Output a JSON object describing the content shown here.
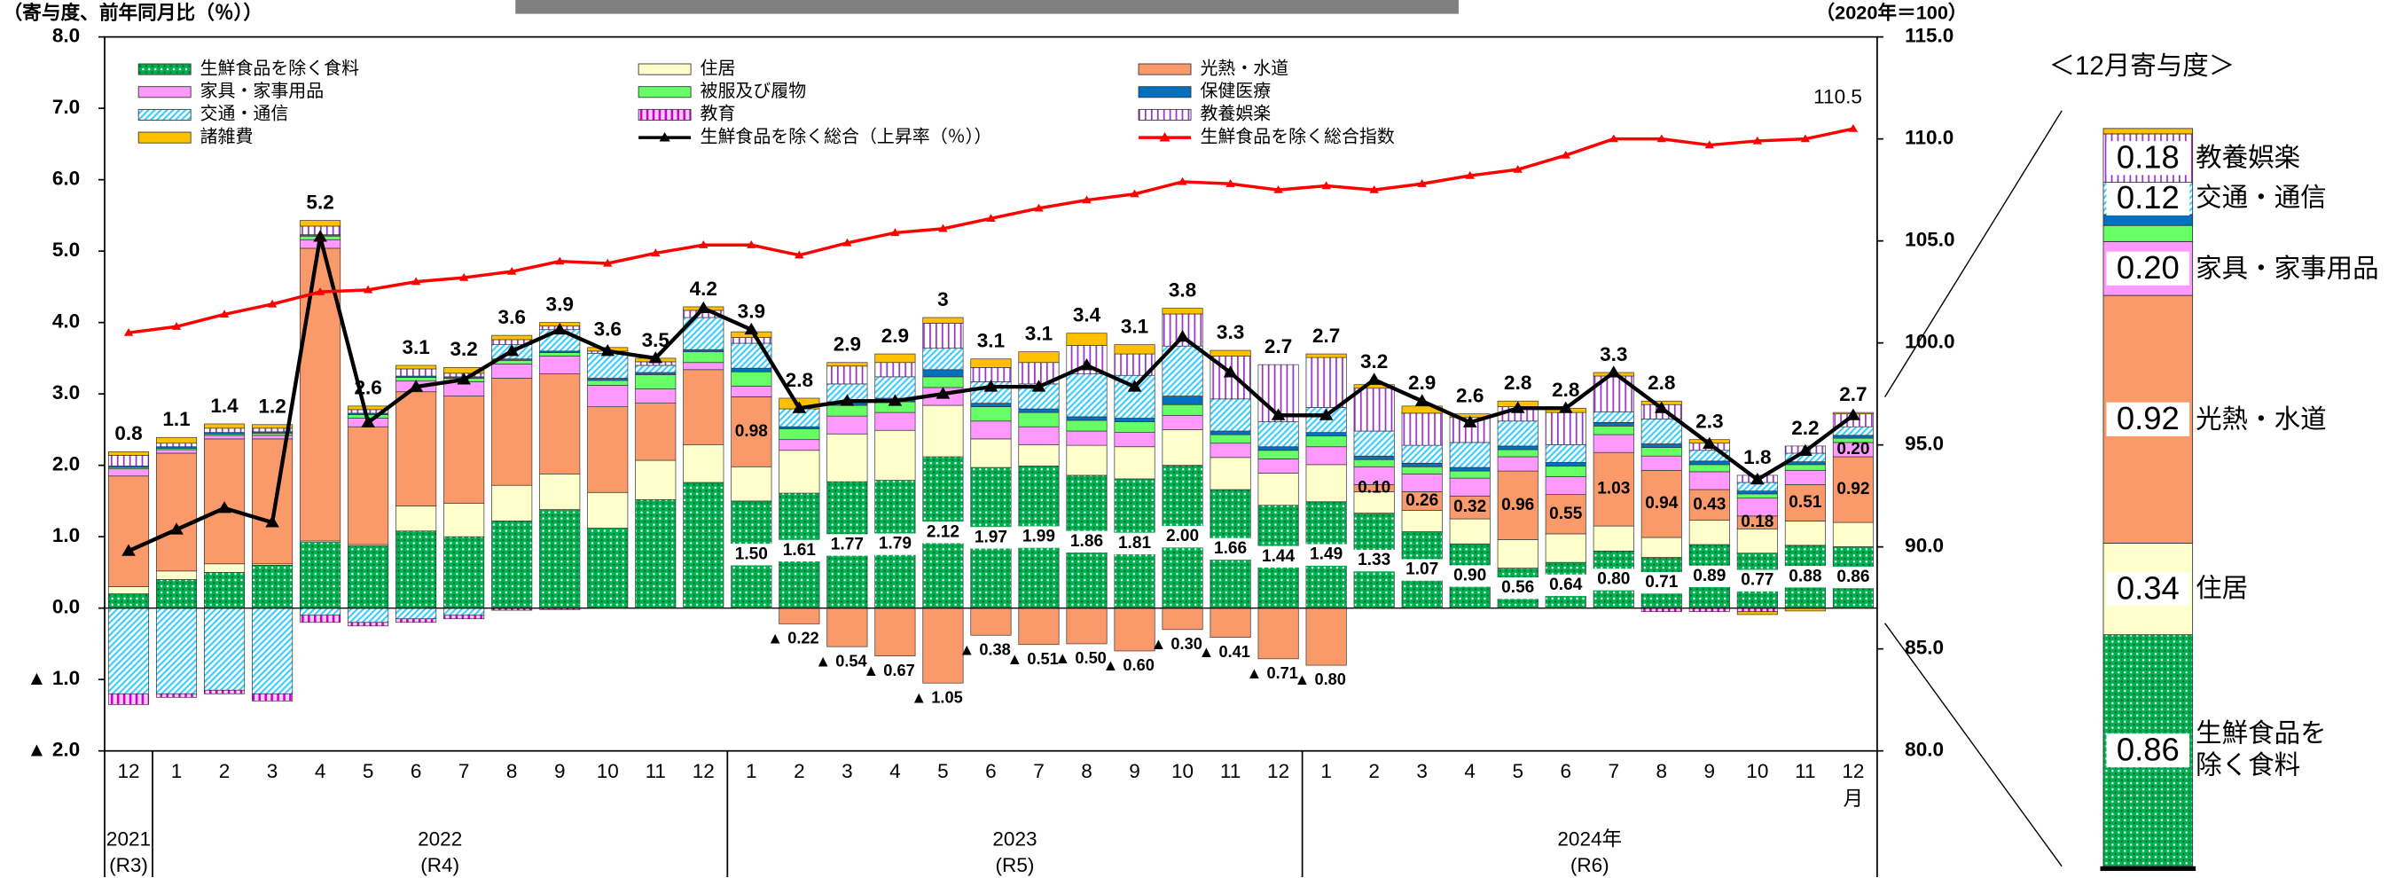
{
  "axis_label_left": "（寄与度、前年同月比（％））",
  "axis_label_right": "（2020年＝100）",
  "panel_title": "＜12月寄与度＞",
  "chart_data": {
    "type": "bar",
    "stacked": true,
    "categories": [
      "12",
      "1",
      "2",
      "3",
      "4",
      "5",
      "6",
      "7",
      "8",
      "9",
      "10",
      "11",
      "12",
      "1",
      "2",
      "3",
      "4",
      "5",
      "6",
      "7",
      "8",
      "9",
      "10",
      "11",
      "12",
      "1",
      "2",
      "3",
      "4",
      "5",
      "6",
      "7",
      "8",
      "9",
      "10",
      "11",
      "12"
    ],
    "month_unit": "月",
    "years": [
      {
        "year": "2021",
        "era": "(R3)"
      },
      {
        "year": "2022",
        "era": "(R4)"
      },
      {
        "year": "2023",
        "era": "(R5)"
      },
      {
        "year": "2024年",
        "era": "(R6)"
      }
    ],
    "ylim": [
      -2,
      8
    ],
    "yticks": [
      {
        "value": 8,
        "label": "8.0"
      },
      {
        "value": 7,
        "label": "7.0"
      },
      {
        "value": 6,
        "label": "6.0"
      },
      {
        "value": 5,
        "label": "5.0"
      },
      {
        "value": 4,
        "label": "4.0"
      },
      {
        "value": 3,
        "label": "3.0"
      },
      {
        "value": 2,
        "label": "2.0"
      },
      {
        "value": 1,
        "label": "1.0"
      },
      {
        "value": 0,
        "label": "0.0"
      },
      {
        "value": -1,
        "label": "▲ 1.0"
      },
      {
        "value": -2,
        "label": "▲ 2.0"
      }
    ],
    "y2lim": [
      80,
      115
    ],
    "y2ticks": [
      {
        "value": 115,
        "label": "115.0"
      },
      {
        "value": 110,
        "label": "110.0"
      },
      {
        "value": 105,
        "label": "105.0"
      },
      {
        "value": 100,
        "label": "100.0"
      },
      {
        "value": 95,
        "label": "95.0"
      },
      {
        "value": 90,
        "label": "90.0"
      },
      {
        "value": 85,
        "label": "85.0"
      },
      {
        "value": 80,
        "label": "80.0"
      }
    ],
    "grid": false,
    "series": [
      {
        "name": "生鮮食品を除く食料",
        "type": "bar",
        "color": "#00b050",
        "pattern": "dots",
        "values": [
          0.2,
          0.4,
          0.5,
          0.6,
          0.92,
          0.87,
          1.08,
          1.0,
          1.22,
          1.38,
          1.12,
          1.52,
          1.76,
          1.5,
          1.61,
          1.77,
          1.79,
          2.12,
          1.97,
          1.99,
          1.86,
          1.81,
          2.0,
          1.66,
          1.44,
          1.49,
          1.33,
          1.07,
          0.9,
          0.56,
          0.64,
          0.8,
          0.71,
          0.89,
          0.77,
          0.88,
          0.86
        ],
        "value_labels": [
          null,
          null,
          null,
          null,
          null,
          null,
          null,
          null,
          null,
          null,
          null,
          null,
          null,
          "1.50",
          "1.61",
          "1.77",
          "1.79",
          "2.12",
          "1.97",
          "1.99",
          "1.86",
          "1.81",
          "2.00",
          "1.66",
          "1.44",
          "1.49",
          "1.33",
          "1.07",
          "0.90",
          "0.56",
          "0.64",
          "0.80",
          "0.71",
          "0.89",
          "0.77",
          "0.88",
          "0.86"
        ]
      },
      {
        "name": "住居",
        "type": "bar",
        "color": "#ffffcc",
        "values": [
          0.1,
          0.12,
          0.12,
          0.02,
          0.02,
          0.02,
          0.35,
          0.47,
          0.5,
          0.5,
          0.5,
          0.55,
          0.53,
          0.48,
          0.6,
          0.67,
          0.7,
          0.72,
          0.4,
          0.3,
          0.42,
          0.45,
          0.5,
          0.45,
          0.45,
          0.52,
          0.3,
          0.3,
          0.35,
          0.4,
          0.4,
          0.35,
          0.28,
          0.34,
          0.34,
          0.34,
          0.34
        ]
      },
      {
        "name": "光熱・水道",
        "type": "bar",
        "color": "#fa9a6a",
        "values": [
          1.55,
          1.65,
          1.75,
          1.75,
          4.1,
          1.65,
          1.6,
          1.5,
          1.5,
          1.4,
          1.2,
          0.8,
          1.05,
          0.98,
          -0.22,
          -0.54,
          -0.67,
          -1.05,
          -0.38,
          -0.51,
          -0.5,
          -0.6,
          -0.3,
          -0.41,
          -0.71,
          -0.8,
          0.1,
          0.26,
          0.32,
          0.96,
          0.55,
          1.03,
          0.94,
          0.43,
          0.18,
          0.51,
          0.92
        ],
        "value_labels": [
          null,
          null,
          null,
          null,
          null,
          null,
          null,
          null,
          null,
          null,
          null,
          null,
          null,
          "0.98",
          "▲ 0.22",
          "▲ 0.54",
          "▲ 0.67",
          "▲ 1.05",
          "▲ 0.38",
          "▲ 0.51",
          "▲ 0.50",
          "▲ 0.60",
          "▲ 0.30",
          "▲ 0.41",
          "▲ 0.71",
          "▲ 0.80",
          "0.10",
          "0.26",
          "0.32",
          "0.96",
          "0.55",
          "1.03",
          "0.94",
          "0.43",
          "0.18",
          "0.51",
          "0.92"
        ]
      },
      {
        "name": "家具・家事用品",
        "type": "bar",
        "color": "#ff99ff",
        "values": [
          0.1,
          0.05,
          0.05,
          0.05,
          0.12,
          0.12,
          0.15,
          0.2,
          0.2,
          0.25,
          0.3,
          0.2,
          0.1,
          0.15,
          0.15,
          0.25,
          0.25,
          0.25,
          0.25,
          0.25,
          0.2,
          0.2,
          0.2,
          0.2,
          0.2,
          0.25,
          0.25,
          0.25,
          0.25,
          0.2,
          0.25,
          0.25,
          0.2,
          0.25,
          0.25,
          0.2,
          0.2
        ],
        "value_labels": [
          null,
          null,
          null,
          null,
          null,
          null,
          null,
          null,
          null,
          null,
          null,
          null,
          null,
          null,
          null,
          null,
          null,
          null,
          null,
          null,
          null,
          null,
          null,
          null,
          null,
          null,
          null,
          null,
          null,
          null,
          null,
          null,
          null,
          null,
          null,
          null,
          "0.20"
        ]
      },
      {
        "name": "被服及び履物",
        "type": "bar",
        "color": "#66ff66",
        "values": [
          0.02,
          0.02,
          0.02,
          0.03,
          0.05,
          0.05,
          0.05,
          0.05,
          0.05,
          0.05,
          0.07,
          0.2,
          0.15,
          0.2,
          0.15,
          0.15,
          0.15,
          0.15,
          0.2,
          0.2,
          0.15,
          0.15,
          0.15,
          0.12,
          0.12,
          0.15,
          0.1,
          0.1,
          0.1,
          0.1,
          0.15,
          0.12,
          0.12,
          0.1,
          0.06,
          0.08,
          0.06
        ]
      },
      {
        "name": "保健医療",
        "type": "bar",
        "color": "#0070c0",
        "values": [
          0.02,
          0.02,
          0.02,
          0.02,
          0.02,
          0.02,
          0.02,
          0.02,
          0.02,
          0.02,
          0.03,
          0.03,
          0.03,
          0.05,
          0.03,
          0.05,
          0.05,
          0.1,
          0.05,
          0.05,
          0.05,
          0.05,
          0.12,
          0.05,
          0.05,
          0.05,
          0.05,
          0.05,
          0.05,
          0.05,
          0.05,
          0.05,
          0.05,
          0.05,
          0.04,
          0.04,
          0.04
        ]
      },
      {
        "name": "交通・通信",
        "type": "bar",
        "color": "#33ccff",
        "pattern": "hatch",
        "values": [
          -1.2,
          -1.2,
          -1.15,
          -1.2,
          -0.1,
          -0.2,
          -0.15,
          -0.1,
          0.2,
          0.3,
          0.35,
          0.1,
          0.45,
          0.35,
          0.25,
          0.25,
          0.3,
          0.3,
          0.3,
          0.35,
          0.6,
          0.6,
          0.7,
          0.45,
          0.35,
          0.35,
          0.35,
          0.25,
          0.35,
          0.35,
          0.25,
          0.15,
          0.35,
          0.15,
          0.12,
          0.12,
          0.12
        ]
      },
      {
        "name": "教育",
        "type": "bar",
        "color": "#cc00cc",
        "pattern": "stripes-dense",
        "values": [
          -0.15,
          -0.05,
          -0.05,
          -0.1,
          -0.1,
          -0.05,
          -0.05,
          -0.05,
          -0.03,
          -0.02,
          0,
          0,
          0,
          0,
          0,
          0,
          0,
          0,
          0,
          0,
          0,
          0,
          0,
          0,
          0,
          0,
          0,
          0,
          0,
          0,
          0,
          0,
          -0.05,
          -0.05,
          -0.05,
          0,
          0
        ]
      },
      {
        "name": "教養娯楽",
        "type": "bar",
        "color": "#9933cc",
        "pattern": "stripes",
        "values": [
          0.15,
          0.05,
          0.06,
          0.05,
          0.12,
          0.05,
          0.1,
          0.05,
          0.07,
          0.05,
          0.03,
          0.05,
          0.1,
          0.08,
          0.0,
          0.25,
          0.2,
          0.35,
          0.2,
          0.3,
          0.4,
          0.3,
          0.45,
          0.6,
          0.8,
          0.7,
          0.6,
          0.45,
          0.35,
          0.2,
          0.45,
          0.5,
          0.2,
          0.1,
          0.1,
          0.1,
          0.18
        ]
      },
      {
        "name": "諸雑費",
        "type": "bar",
        "color": "#ffc000",
        "values": [
          0.05,
          0.08,
          0.06,
          0.05,
          0.08,
          0.05,
          0.05,
          0.08,
          0.06,
          0.05,
          0.05,
          0.05,
          0.05,
          0.08,
          0.15,
          0.05,
          0.12,
          0.08,
          0.12,
          0.15,
          0.17,
          0.13,
          0.08,
          0.08,
          0.0,
          0.05,
          0.05,
          0.1,
          0.05,
          0.08,
          0.06,
          0.05,
          0.05,
          0.05,
          -0.04,
          -0.04,
          0.02
        ]
      },
      {
        "name": "生鮮食品を除く総合（上昇率（％））",
        "type": "line",
        "color": "#000000",
        "values": [
          0.8,
          1.1,
          1.4,
          1.2,
          5.2,
          2.6,
          3.1,
          3.2,
          3.6,
          3.9,
          3.6,
          3.5,
          4.2,
          3.9,
          2.8,
          2.9,
          2.9,
          3.0,
          3.1,
          3.1,
          3.4,
          3.1,
          3.8,
          3.3,
          2.7,
          2.7,
          3.2,
          2.9,
          2.6,
          2.8,
          2.8,
          3.3,
          2.8,
          2.3,
          1.8,
          2.2,
          2.7
        ]
      },
      {
        "name": "生鮮食品を除く総合指数",
        "type": "line",
        "axis": "y2",
        "color": "#ff0000",
        "values": [
          100.5,
          100.8,
          101.4,
          101.9,
          102.5,
          102.6,
          103.0,
          103.2,
          103.5,
          104.0,
          103.9,
          104.4,
          104.8,
          104.8,
          104.3,
          104.9,
          105.4,
          105.6,
          106.1,
          106.6,
          107.0,
          107.3,
          107.9,
          107.8,
          107.5,
          107.7,
          107.5,
          107.8,
          108.2,
          108.5,
          109.2,
          110.0,
          110.0,
          109.7,
          109.9,
          110.0,
          110.5
        ]
      }
    ]
  }
}
